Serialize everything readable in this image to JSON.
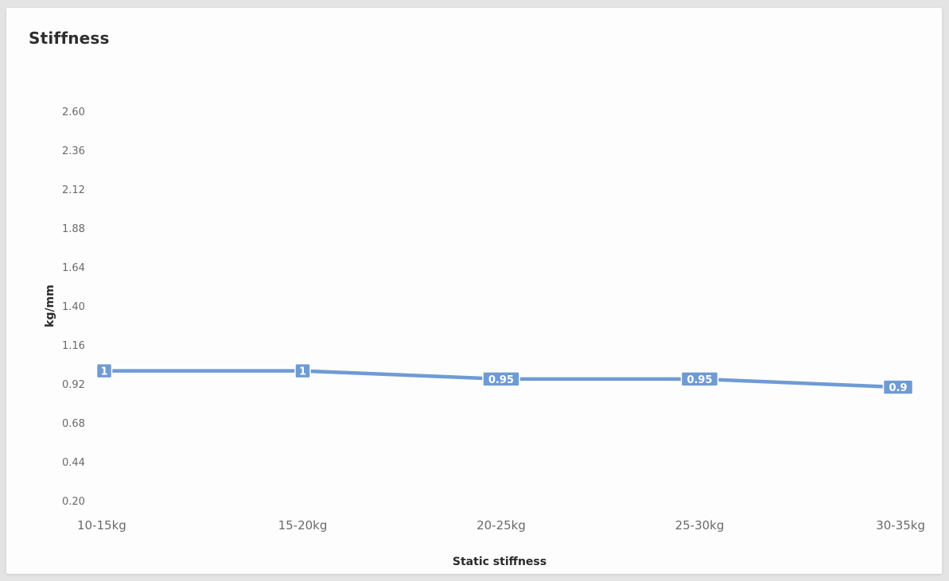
{
  "title": "Stiffness",
  "chart_data": {
    "type": "line",
    "title": "Stiffness",
    "xlabel": "Static stiffness",
    "ylabel": "kg/mm",
    "categories": [
      "10-15kg",
      "15-20kg",
      "20-25kg",
      "25-30kg",
      "30-35kg"
    ],
    "series": [
      {
        "values": [
          1,
          1,
          0.95,
          0.95,
          0.9
        ],
        "labels": [
          "1",
          "1",
          "0.95",
          "0.95",
          "0.9"
        ],
        "color": "#6f9bd3"
      }
    ],
    "yticks": [
      "2.60",
      "2.36",
      "2.12",
      "1.88",
      "1.64",
      "1.40",
      "1.16",
      "0.92",
      "0.68",
      "0.44",
      "0.20"
    ],
    "ylim": [
      0.2,
      2.6
    ],
    "grid": false,
    "legend": "none"
  }
}
